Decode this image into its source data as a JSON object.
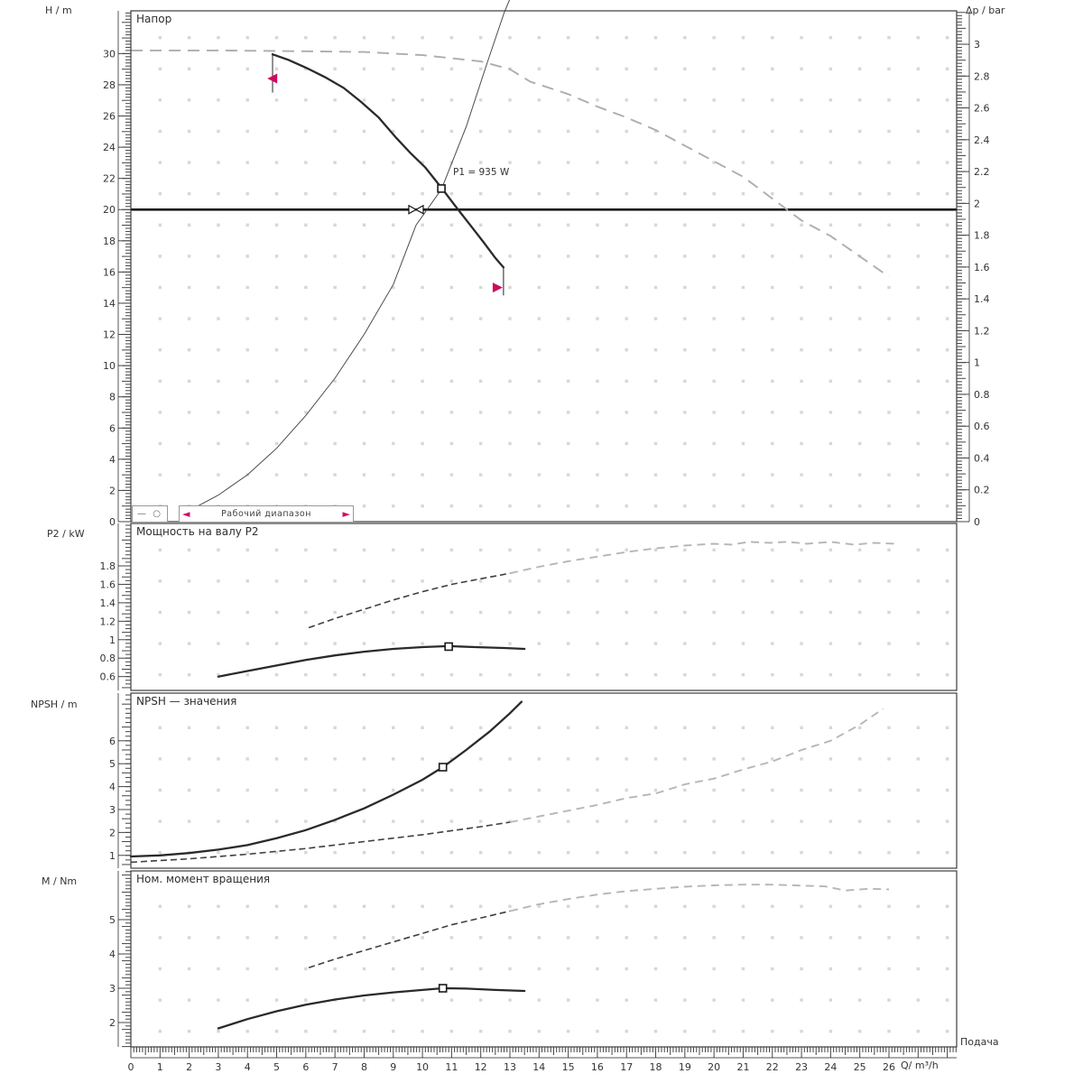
{
  "colors": {
    "accent_red": "#cf0a5f",
    "curve_dark": "#2a2a2a",
    "dash_gray": "#b6b6b6",
    "grid_dot": "#d7d7d7",
    "frame": "#3c3c3c",
    "design_line": "#000000"
  },
  "legend": {
    "curve_symbol": "— ○",
    "arrow_left": "◄",
    "arrow_right": "►",
    "range_label": "Рабочий диапазон"
  },
  "chart_data": {
    "type": "line",
    "x_axis": {
      "label": "Q/ m³/h",
      "flow_label": "Подача",
      "min": 0,
      "max": 28.32,
      "minor": 0.1,
      "ticks": [
        0,
        1,
        2,
        3,
        4,
        5,
        6,
        7,
        8,
        9,
        10,
        11,
        12,
        13,
        14,
        15,
        16,
        17,
        18,
        19,
        20,
        21,
        22,
        23,
        24,
        25,
        26
      ]
    },
    "panels": [
      {
        "id": "head",
        "title": "Напор",
        "y_axis": {
          "label": "H / m",
          "min": 0,
          "max": 32.74,
          "minor": 0.2,
          "ticks": [
            0,
            2,
            4,
            6,
            8,
            10,
            12,
            14,
            16,
            18,
            20,
            22,
            24,
            26,
            28,
            30
          ]
        },
        "y2_axis": {
          "label": "Δp / bar",
          "min": 0,
          "max": 3.21,
          "minor": 0.02,
          "ticks": [
            0,
            0.2,
            0.4,
            0.6,
            0.8,
            1,
            1.2,
            1.4,
            1.6,
            1.8,
            2,
            2.2,
            2.4,
            2.6,
            2.8,
            3
          ]
        },
        "design_head_line": 20,
        "series": [
          {
            "name": "max-speed-head-curve",
            "style": "s-dash-gray-long",
            "points": [
              [
                0,
                30.2
              ],
              [
                3,
                30.2
              ],
              [
                6,
                30.15
              ],
              [
                8,
                30.1
              ],
              [
                10,
                29.9
              ],
              [
                12,
                29.5
              ],
              [
                13,
                29.0
              ],
              [
                13.7,
                28.2
              ],
              [
                15,
                27.4
              ],
              [
                16,
                26.6
              ],
              [
                17,
                25.9
              ],
              [
                18,
                25.1
              ],
              [
                19,
                24.1
              ],
              [
                20,
                23.1
              ],
              [
                21,
                22.1
              ],
              [
                22,
                20.7
              ],
              [
                23,
                19.3
              ],
              [
                24,
                18.3
              ],
              [
                25,
                17.0
              ],
              [
                26,
                15.7
              ]
            ]
          },
          {
            "name": "pump-head-curve",
            "style": "s-solid",
            "points": [
              [
                4.86,
                29.95
              ],
              [
                5.4,
                29.6
              ],
              [
                6,
                29.1
              ],
              [
                6.65,
                28.5
              ],
              [
                7.3,
                27.8
              ],
              [
                7.9,
                26.9
              ],
              [
                8.5,
                25.9
              ],
              [
                9.1,
                24.6
              ],
              [
                9.6,
                23.6
              ],
              [
                10.1,
                22.7
              ],
              [
                10.65,
                21.4
              ],
              [
                11.1,
                20.3
              ],
              [
                11.6,
                19.1
              ],
              [
                12.1,
                17.9
              ],
              [
                12.5,
                16.9
              ],
              [
                12.78,
                16.3
              ]
            ]
          },
          {
            "name": "system-curve",
            "style": "s-thin",
            "points": [
              [
                2.2,
                0.9
              ],
              [
                3,
                1.7
              ],
              [
                4,
                3.0
              ],
              [
                5,
                4.7
              ],
              [
                6,
                6.8
              ],
              [
                7,
                9.2
              ],
              [
                8,
                12.0
              ],
              [
                9,
                15.2
              ],
              [
                9.78,
                19.0
              ],
              [
                10.65,
                21.3
              ],
              [
                11.5,
                25.3
              ],
              [
                12.2,
                29.3
              ],
              [
                12.8,
                32.6
              ],
              [
                13,
                33.5
              ]
            ]
          }
        ],
        "markers": [
          {
            "type": "square",
            "q": 10.65,
            "v": 21.35
          },
          {
            "type": "valve",
            "q": 9.78,
            "v": 20
          },
          {
            "type": "vline",
            "q": 4.86,
            "v": 30,
            "v2": 27.5
          },
          {
            "type": "vline",
            "q": 12.78,
            "v": 16.3,
            "v2": 14.5
          },
          {
            "type": "arrow-left",
            "q": 4.68,
            "v": 28.4
          },
          {
            "type": "arrow-right",
            "q": 12.75,
            "v": 15.0
          }
        ],
        "annotations": [
          {
            "q": 11.05,
            "v": 22.2,
            "text": "P1 = 935 W"
          }
        ]
      },
      {
        "id": "power",
        "title": "Мощность на валу P2",
        "y_axis": {
          "label": "P2 / kW",
          "min": 0.45,
          "max": 2.26,
          "minor": 0.04,
          "ticks": [
            0.6,
            0.8,
            1,
            1.2,
            1.4,
            1.6,
            1.8
          ]
        },
        "series": [
          {
            "name": "p2-max-curve-dark",
            "style": "s-dash-dark",
            "points": [
              [
                6.1,
                1.13
              ],
              [
                7,
                1.23
              ],
              [
                8,
                1.33
              ],
              [
                9,
                1.43
              ],
              [
                10,
                1.52
              ],
              [
                11,
                1.6
              ],
              [
                12,
                1.66
              ],
              [
                13,
                1.72
              ]
            ]
          },
          {
            "name": "p2-max-curve-gray",
            "style": "s-dash-gray",
            "points": [
              [
                13,
                1.72
              ],
              [
                14,
                1.79
              ],
              [
                15,
                1.85
              ],
              [
                16,
                1.9
              ],
              [
                17,
                1.95
              ],
              [
                18,
                1.99
              ],
              [
                19,
                2.02
              ],
              [
                20,
                2.04
              ],
              [
                20.6,
                2.03
              ],
              [
                21.2,
                2.06
              ],
              [
                21.9,
                2.05
              ],
              [
                22.5,
                2.06
              ],
              [
                23.2,
                2.04
              ],
              [
                24,
                2.06
              ],
              [
                24.8,
                2.03
              ],
              [
                25.5,
                2.05
              ],
              [
                26.2,
                2.04
              ]
            ]
          },
          {
            "name": "p2-curve",
            "style": "s-solid",
            "points": [
              [
                3,
                0.6
              ],
              [
                4,
                0.66
              ],
              [
                5,
                0.72
              ],
              [
                6,
                0.78
              ],
              [
                7,
                0.83
              ],
              [
                8,
                0.87
              ],
              [
                9,
                0.9
              ],
              [
                10,
                0.92
              ],
              [
                10.9,
                0.93
              ],
              [
                11.8,
                0.92
              ],
              [
                12.8,
                0.91
              ],
              [
                13.5,
                0.9
              ]
            ]
          }
        ],
        "markers": [
          {
            "type": "square",
            "q": 10.9,
            "v": 0.925
          }
        ],
        "annotations": []
      },
      {
        "id": "npsh",
        "title": "NPSH — значения",
        "y_axis": {
          "label": "NPSH / m",
          "min": 0.44,
          "max": 8.08,
          "minor": 0.2,
          "ticks": [
            1,
            2,
            3,
            4,
            5,
            6
          ]
        },
        "series": [
          {
            "name": "npsh-max-curve-dark",
            "style": "s-dash-dark",
            "points": [
              [
                0,
                0.7
              ],
              [
                2,
                0.85
              ],
              [
                4,
                1.05
              ],
              [
                6,
                1.3
              ],
              [
                8,
                1.6
              ],
              [
                10,
                1.9
              ],
              [
                12,
                2.25
              ],
              [
                13,
                2.45
              ]
            ]
          },
          {
            "name": "npsh-max-curve-gray",
            "style": "s-dash-gray",
            "points": [
              [
                13,
                2.45
              ],
              [
                14,
                2.7
              ],
              [
                16,
                3.2
              ],
              [
                17,
                3.5
              ],
              [
                18,
                3.7
              ],
              [
                19,
                4.1
              ],
              [
                20,
                4.35
              ],
              [
                21,
                4.75
              ],
              [
                22,
                5.1
              ],
              [
                23,
                5.6
              ],
              [
                24,
                6.0
              ],
              [
                25,
                6.7
              ],
              [
                25.8,
                7.4
              ]
            ]
          },
          {
            "name": "npsh-curve",
            "style": "s-solid",
            "points": [
              [
                0,
                0.95
              ],
              [
                1,
                1.0
              ],
              [
                2,
                1.1
              ],
              [
                3,
                1.25
              ],
              [
                4,
                1.45
              ],
              [
                5,
                1.75
              ],
              [
                6,
                2.1
              ],
              [
                7,
                2.55
              ],
              [
                8,
                3.05
              ],
              [
                9,
                3.65
              ],
              [
                10,
                4.3
              ],
              [
                10.7,
                4.85
              ],
              [
                11.5,
                5.6
              ],
              [
                12.3,
                6.4
              ],
              [
                13,
                7.2
              ],
              [
                13.4,
                7.7
              ]
            ]
          }
        ],
        "markers": [
          {
            "type": "square",
            "q": 10.7,
            "v": 4.85
          }
        ],
        "annotations": []
      },
      {
        "id": "torque",
        "title": "Ном. момент вращения",
        "y_axis": {
          "label": "M / Nm",
          "min": 1.29,
          "max": 6.42,
          "minor": 0.1,
          "ticks": [
            2,
            3,
            4,
            5
          ]
        },
        "series": [
          {
            "name": "torque-max-curve-dark",
            "style": "s-dash-dark",
            "points": [
              [
                6.1,
                3.6
              ],
              [
                7,
                3.85
              ],
              [
                8,
                4.1
              ],
              [
                9,
                4.35
              ],
              [
                10,
                4.6
              ],
              [
                11,
                4.85
              ],
              [
                12,
                5.05
              ],
              [
                13,
                5.25
              ]
            ]
          },
          {
            "name": "torque-max-curve-gray",
            "style": "s-dash-gray",
            "points": [
              [
                13,
                5.25
              ],
              [
                14,
                5.45
              ],
              [
                15,
                5.6
              ],
              [
                16,
                5.73
              ],
              [
                17,
                5.83
              ],
              [
                18,
                5.9
              ],
              [
                19,
                5.96
              ],
              [
                20,
                6.0
              ],
              [
                21,
                6.02
              ],
              [
                22,
                6.02
              ],
              [
                23,
                5.99
              ],
              [
                23.8,
                5.97
              ],
              [
                24.5,
                5.85
              ],
              [
                25.3,
                5.9
              ],
              [
                26,
                5.88
              ]
            ]
          },
          {
            "name": "torque-curve",
            "style": "s-solid",
            "points": [
              [
                3,
                1.83
              ],
              [
                4,
                2.1
              ],
              [
                5,
                2.33
              ],
              [
                6,
                2.52
              ],
              [
                7,
                2.67
              ],
              [
                8,
                2.79
              ],
              [
                9,
                2.88
              ],
              [
                10,
                2.95
              ],
              [
                10.7,
                3.0
              ],
              [
                11.5,
                2.99
              ],
              [
                12.5,
                2.95
              ],
              [
                13.5,
                2.92
              ]
            ]
          }
        ],
        "markers": [
          {
            "type": "square",
            "q": 10.7,
            "v": 3.0
          }
        ],
        "annotations": []
      }
    ]
  }
}
